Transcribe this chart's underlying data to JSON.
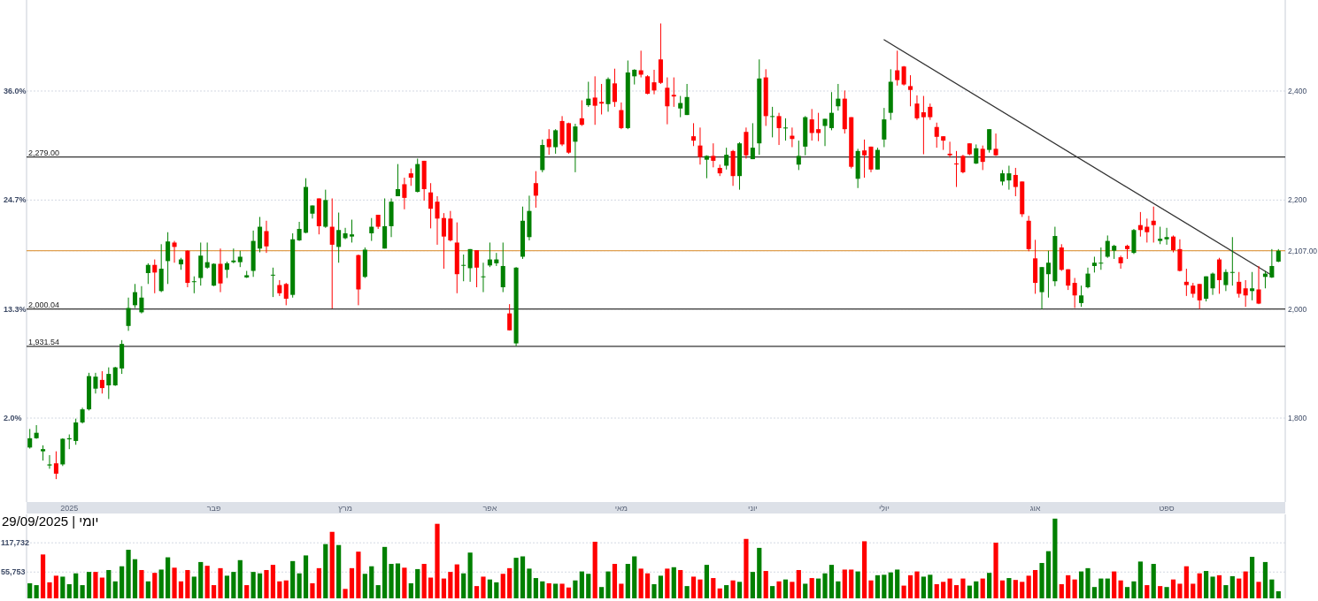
{
  "chart_data": [
    {
      "type": "candlestick",
      "categories": [
        null,
        null,
        null,
        null,
        null,
        null,
        "2025",
        null,
        null,
        null,
        null,
        null,
        null,
        null,
        null,
        null,
        null,
        null,
        null,
        null,
        null,
        null,
        null,
        null,
        null,
        null,
        null,
        null,
        "פבר",
        null,
        null,
        null,
        null,
        null,
        null,
        null,
        null,
        null,
        null,
        null,
        null,
        null,
        null,
        null,
        null,
        null,
        null,
        null,
        "מרץ",
        null,
        null,
        null,
        null,
        null,
        null,
        null,
        null,
        null,
        null,
        null,
        null,
        null,
        null,
        null,
        null,
        null,
        null,
        null,
        null,
        null,
        "אפר",
        null,
        null,
        null,
        null,
        null,
        null,
        null,
        null,
        null,
        null,
        null,
        null,
        null,
        null,
        null,
        null,
        null,
        null,
        null,
        "מאי",
        null,
        null,
        null,
        null,
        null,
        null,
        null,
        null,
        null,
        null,
        null,
        null,
        null,
        null,
        null,
        null,
        null,
        null,
        null,
        "יוני",
        null,
        null,
        null,
        null,
        null,
        null,
        null,
        null,
        null,
        null,
        null,
        null,
        null,
        null,
        null,
        null,
        null,
        null,
        null,
        "יולי",
        null,
        null,
        null,
        null,
        null,
        null,
        null,
        null,
        null,
        null,
        null,
        null,
        null,
        null,
        null,
        null,
        null,
        null,
        null,
        null,
        null,
        null,
        "אוג",
        null,
        null,
        null,
        null,
        null,
        null,
        null,
        null,
        null,
        null,
        null,
        null,
        null,
        null,
        null,
        null,
        null,
        null,
        null,
        "ספט",
        null,
        null,
        null,
        null,
        null,
        null,
        null,
        null,
        null,
        null,
        null,
        null,
        null,
        null,
        null,
        null,
        null
      ],
      "ohlc": [
        [
          1746,
          1780,
          1744,
          1763
        ],
        [
          1763,
          1787,
          1762,
          1773
        ],
        [
          1739,
          1750,
          1722,
          1743
        ],
        [
          1713,
          1732,
          1707,
          1715
        ],
        [
          1717,
          1739,
          1688,
          1698
        ],
        [
          1715,
          1763,
          1712,
          1762
        ],
        [
          1761,
          1770,
          1743,
          1763
        ],
        [
          1758,
          1799,
          1751,
          1792
        ],
        [
          1792,
          1819,
          1790,
          1816
        ],
        [
          1816,
          1883,
          1814,
          1877
        ],
        [
          1854,
          1883,
          1845,
          1876
        ],
        [
          1870,
          1886,
          1845,
          1855
        ],
        [
          1860,
          1893,
          1835,
          1881
        ],
        [
          1860,
          1894,
          1859,
          1893
        ],
        [
          1891,
          1943,
          1881,
          1936
        ],
        [
          1969,
          2021,
          1960,
          2002
        ],
        [
          2007,
          2046,
          2002,
          2031
        ],
        [
          1994,
          2042,
          1992,
          2021
        ],
        [
          2066,
          2084,
          2046,
          2081
        ],
        [
          2081,
          2091,
          2029,
          2067
        ],
        [
          2033,
          2119,
          2031,
          2074
        ],
        [
          2088,
          2141,
          2046,
          2124
        ],
        [
          2122,
          2125,
          2085,
          2114
        ],
        [
          2082,
          2094,
          2072,
          2091
        ],
        [
          2107,
          2108,
          2040,
          2048
        ],
        [
          2050,
          2060,
          2029,
          2051
        ],
        [
          2057,
          2122,
          2043,
          2098
        ],
        [
          2076,
          2122,
          2074,
          2086
        ],
        [
          2043,
          2084,
          2042,
          2083
        ],
        [
          2083,
          2111,
          2031,
          2047
        ],
        [
          2072,
          2087,
          2057,
          2084
        ],
        [
          2086,
          2111,
          2084,
          2089
        ],
        [
          2086,
          2107,
          2077,
          2096
        ],
        [
          2058,
          2070,
          2057,
          2062
        ],
        [
          2070,
          2144,
          2059,
          2125
        ],
        [
          2111,
          2169,
          2104,
          2151
        ],
        [
          2143,
          2162,
          2103,
          2115
        ],
        [
          2062,
          2076,
          2022,
          2063
        ],
        [
          2044,
          2053,
          2024,
          2029
        ],
        [
          2046,
          2048,
          2007,
          2019
        ],
        [
          2026,
          2139,
          2021,
          2128
        ],
        [
          2126,
          2160,
          2125,
          2147
        ],
        [
          2140,
          2240,
          2139,
          2224
        ],
        [
          2175,
          2190,
          2166,
          2190
        ],
        [
          2203,
          2203,
          2137,
          2152
        ],
        [
          2151,
          2219,
          2149,
          2200
        ],
        [
          2151,
          2203,
          2001,
          2118
        ],
        [
          2114,
          2177,
          2085,
          2145
        ],
        [
          2130,
          2149,
          2128,
          2139
        ],
        [
          2133,
          2164,
          2122,
          2137
        ],
        [
          2099,
          2100,
          2007,
          2036
        ],
        [
          2059,
          2113,
          2057,
          2109
        ],
        [
          2139,
          2167,
          2125,
          2151
        ],
        [
          2173,
          2173,
          2147,
          2151
        ],
        [
          2111,
          2203,
          2111,
          2152
        ],
        [
          2152,
          2203,
          2132,
          2197
        ],
        [
          2207,
          2266,
          2207,
          2220
        ],
        [
          2229,
          2241,
          2183,
          2204
        ],
        [
          2249,
          2258,
          2226,
          2241
        ],
        [
          2215,
          2276,
          2214,
          2266
        ],
        [
          2272,
          2272,
          2199,
          2220
        ],
        [
          2214,
          2231,
          2148,
          2184
        ],
        [
          2197,
          2207,
          2118,
          2166
        ],
        [
          2167,
          2176,
          2074,
          2133
        ],
        [
          2166,
          2180,
          2124,
          2126
        ],
        [
          2122,
          2159,
          2029,
          2064
        ],
        [
          2080,
          2100,
          2051,
          2081
        ],
        [
          2075,
          2110,
          2050,
          2110
        ],
        [
          2108,
          2108,
          2040,
          2076
        ],
        [
          2060,
          2085,
          2031,
          2060
        ],
        [
          2080,
          2122,
          2077,
          2091
        ],
        [
          2084,
          2103,
          2079,
          2091
        ],
        [
          2040,
          2122,
          2031,
          2079
        ],
        [
          1992,
          2009,
          1961,
          1961
        ],
        [
          1937,
          2077,
          1932,
          2076
        ],
        [
          2096,
          2188,
          2092,
          2162
        ],
        [
          2132,
          2208,
          2126,
          2180
        ],
        [
          2231,
          2253,
          2186,
          2208
        ],
        [
          2255,
          2311,
          2251,
          2301
        ],
        [
          2312,
          2330,
          2283,
          2297
        ],
        [
          2297,
          2330,
          2285,
          2328
        ],
        [
          2345,
          2354,
          2299,
          2302
        ],
        [
          2341,
          2342,
          2285,
          2287
        ],
        [
          2307,
          2340,
          2251,
          2335
        ],
        [
          2350,
          2383,
          2336,
          2338
        ],
        [
          2374,
          2417,
          2371,
          2386
        ],
        [
          2388,
          2427,
          2338,
          2373
        ],
        [
          2380,
          2413,
          2357,
          2377
        ],
        [
          2376,
          2425,
          2362,
          2422
        ],
        [
          2414,
          2441,
          2371,
          2380
        ],
        [
          2365,
          2379,
          2330,
          2332
        ],
        [
          2332,
          2456,
          2330,
          2434
        ],
        [
          2427,
          2440,
          2412,
          2439
        ],
        [
          2438,
          2474,
          2425,
          2430
        ],
        [
          2427,
          2429,
          2394,
          2395
        ],
        [
          2416,
          2439,
          2394,
          2401
        ],
        [
          2458,
          2524,
          2413,
          2415
        ],
        [
          2406,
          2425,
          2339,
          2372
        ],
        [
          2393,
          2425,
          2371,
          2390
        ],
        [
          2368,
          2391,
          2352,
          2378
        ],
        [
          2356,
          2413,
          2356,
          2389
        ],
        [
          2317,
          2341,
          2299,
          2309
        ],
        [
          2300,
          2333,
          2265,
          2279
        ],
        [
          2274,
          2282,
          2240,
          2281
        ],
        [
          2281,
          2304,
          2260,
          2272
        ],
        [
          2259,
          2265,
          2244,
          2249
        ],
        [
          2263,
          2296,
          2256,
          2283
        ],
        [
          2290,
          2292,
          2226,
          2244
        ],
        [
          2244,
          2306,
          2219,
          2304
        ],
        [
          2325,
          2333,
          2276,
          2282
        ],
        [
          2275,
          2341,
          2275,
          2296
        ],
        [
          2304,
          2458,
          2283,
          2423
        ],
        [
          2425,
          2440,
          2336,
          2354
        ],
        [
          2354,
          2371,
          2315,
          2354
        ],
        [
          2354,
          2360,
          2301,
          2332
        ],
        [
          2333,
          2350,
          2309,
          2333
        ],
        [
          2318,
          2333,
          2297,
          2312
        ],
        [
          2265,
          2309,
          2255,
          2281
        ],
        [
          2298,
          2354,
          2282,
          2352
        ],
        [
          2348,
          2367,
          2309,
          2323
        ],
        [
          2330,
          2360,
          2308,
          2323
        ],
        [
          2336,
          2349,
          2299,
          2349
        ],
        [
          2332,
          2398,
          2328,
          2360
        ],
        [
          2372,
          2413,
          2364,
          2386
        ],
        [
          2386,
          2401,
          2322,
          2330
        ],
        [
          2352,
          2352,
          2258,
          2261
        ],
        [
          2239,
          2294,
          2222,
          2290
        ],
        [
          2291,
          2311,
          2241,
          2282
        ],
        [
          2298,
          2298,
          2251,
          2256
        ],
        [
          2256,
          2296,
          2256,
          2292
        ],
        [
          2311,
          2369,
          2297,
          2348
        ],
        [
          2360,
          2440,
          2347,
          2417
        ],
        [
          2438,
          2474,
          2410,
          2420
        ],
        [
          2445,
          2446,
          2410,
          2412
        ],
        [
          2409,
          2429,
          2372,
          2402
        ],
        [
          2377,
          2392,
          2347,
          2350
        ],
        [
          2361,
          2391,
          2284,
          2352
        ],
        [
          2371,
          2377,
          2347,
          2352
        ],
        [
          2334,
          2342,
          2296,
          2316
        ],
        [
          2317,
          2317,
          2292,
          2309
        ],
        [
          2285,
          2307,
          2278,
          2282
        ],
        [
          2267,
          2290,
          2224,
          2266
        ],
        [
          2281,
          2283,
          2249,
          2251
        ],
        [
          2304,
          2304,
          2282,
          2284
        ],
        [
          2267,
          2302,
          2266,
          2295
        ],
        [
          2294,
          2300,
          2255,
          2270
        ],
        [
          2292,
          2330,
          2287,
          2330
        ],
        [
          2294,
          2322,
          2281,
          2282
        ],
        [
          2234,
          2255,
          2227,
          2249
        ],
        [
          2236,
          2263,
          2219,
          2249
        ],
        [
          2246,
          2259,
          2207,
          2224
        ],
        [
          2234,
          2234,
          2169,
          2174
        ],
        [
          2162,
          2171,
          2106,
          2110
        ],
        [
          2093,
          2127,
          2028,
          2048
        ],
        [
          2031,
          2077,
          2000,
          2077
        ],
        [
          2064,
          2107,
          2021,
          2085
        ],
        [
          2051,
          2151,
          2042,
          2134
        ],
        [
          2113,
          2119,
          2070,
          2072
        ],
        [
          2073,
          2073,
          2035,
          2043
        ],
        [
          2048,
          2057,
          2002,
          2025
        ],
        [
          2011,
          2043,
          2004,
          2025
        ],
        [
          2040,
          2076,
          2038,
          2065
        ],
        [
          2079,
          2096,
          2067,
          2085
        ],
        [
          2085,
          2113,
          2072,
          2085
        ],
        [
          2096,
          2135,
          2094,
          2125
        ],
        [
          2107,
          2118,
          2092,
          2116
        ],
        [
          2095,
          2098,
          2074,
          2084
        ],
        [
          2116,
          2118,
          2092,
          2110
        ],
        [
          2103,
          2147,
          2101,
          2145
        ],
        [
          2154,
          2178,
          2133,
          2145
        ],
        [
          2151,
          2166,
          2122,
          2141
        ],
        [
          2162,
          2188,
          2122,
          2154
        ],
        [
          2125,
          2151,
          2119,
          2129
        ],
        [
          2128,
          2149,
          2118,
          2132
        ],
        [
          2133,
          2135,
          2104,
          2108
        ],
        [
          2110,
          2128,
          2069,
          2070
        ],
        [
          2050,
          2074,
          2024,
          2044
        ],
        [
          2043,
          2048,
          2021,
          2028
        ],
        [
          2046,
          2046,
          2000,
          2016
        ],
        [
          2019,
          2060,
          2014,
          2060
        ],
        [
          2038,
          2067,
          2026,
          2065
        ],
        [
          2091,
          2094,
          2028,
          2053
        ],
        [
          2044,
          2073,
          2033,
          2068
        ],
        [
          2068,
          2132,
          2043,
          2068
        ],
        [
          2050,
          2068,
          2021,
          2028
        ],
        [
          2038,
          2053,
          2004,
          2025
        ],
        [
          2033,
          2068,
          2016,
          2038
        ],
        [
          2036,
          2079,
          2009,
          2010
        ],
        [
          2059,
          2070,
          2038,
          2065
        ],
        [
          2058,
          2110,
          2057,
          2079
        ],
        [
          2087,
          2110,
          2086,
          2107
        ]
      ],
      "colors": [
        "#008000",
        "#008000",
        "#008000",
        "#008000",
        "#ff0000",
        "#008000",
        "#008000",
        "#008000",
        "#008000",
        "#008000",
        "#008000",
        "#ff0000",
        "#008000",
        "#008000",
        "#008000",
        "#008000",
        "#008000",
        "#008000",
        "#008000",
        "#ff0000",
        "#008000",
        "#008000",
        "#ff0000",
        "#008000",
        "#ff0000",
        "#008000",
        "#008000",
        "#008000",
        "#008000",
        "#ff0000",
        "#008000",
        "#008000",
        "#008000",
        "#008000",
        "#008000",
        "#008000",
        "#ff0000",
        "#008000",
        "#ff0000",
        "#ff0000",
        "#008000",
        "#008000",
        "#008000",
        "#008000",
        "#ff0000",
        "#008000",
        "#ff0000",
        "#008000",
        "#008000",
        "#008000",
        "#ff0000",
        "#008000",
        "#008000",
        "#ff0000",
        "#008000",
        "#008000",
        "#008000",
        "#ff0000",
        "#ff0000",
        "#008000",
        "#ff0000",
        "#ff0000",
        "#ff0000",
        "#ff0000",
        "#ff0000",
        "#ff0000",
        "#008000",
        "#008000",
        "#ff0000",
        "#008000",
        "#008000",
        "#008000",
        "#008000",
        "#ff0000",
        "#008000",
        "#008000",
        "#008000",
        "#ff0000",
        "#008000",
        "#ff0000",
        "#008000",
        "#ff0000",
        "#ff0000",
        "#008000",
        "#ff0000",
        "#008000",
        "#ff0000",
        "#ff0000",
        "#008000",
        "#ff0000",
        "#ff0000",
        "#008000",
        "#008000",
        "#ff0000",
        "#ff0000",
        "#ff0000",
        "#ff0000",
        "#ff0000",
        "#ff0000",
        "#008000",
        "#008000",
        "#ff0000",
        "#ff0000",
        "#008000",
        "#ff0000",
        "#ff0000",
        "#008000",
        "#ff0000",
        "#008000",
        "#ff0000",
        "#008000",
        "#008000",
        "#ff0000",
        "#008000",
        "#ff0000",
        "#008000",
        "#ff0000",
        "#008000",
        "#008000",
        "#ff0000",
        "#ff0000",
        "#008000",
        "#008000",
        "#008000",
        "#ff0000",
        "#ff0000",
        "#008000",
        "#ff0000",
        "#ff0000",
        "#008000",
        "#008000",
        "#008000",
        "#ff0000",
        "#ff0000",
        "#ff0000",
        "#ff0000",
        "#ff0000",
        "#ff0000",
        "#ff0000",
        "#ff0000",
        "#ff0000",
        "#ff0000",
        "#ff0000",
        "#ff0000",
        "#008000",
        "#ff0000",
        "#008000",
        "#ff0000",
        "#008000",
        "#008000",
        "#ff0000",
        "#ff0000",
        "#ff0000",
        "#ff0000",
        "#008000",
        "#008000",
        "#008000",
        "#ff0000",
        "#ff0000",
        "#ff0000",
        "#008000",
        "#008000",
        "#008000",
        "#008000",
        "#008000",
        "#008000",
        "#ff0000",
        "#ff0000",
        "#008000",
        "#ff0000",
        "#ff0000",
        "#ff0000",
        "#008000",
        "#008000",
        "#ff0000",
        "#ff0000",
        "#ff0000",
        "#ff0000",
        "#ff0000",
        "#008000",
        "#008000",
        "#ff0000",
        "#008000",
        "#008000",
        "#ff0000",
        "#ff0000",
        "#008000",
        "#ff0000",
        "#008000",
        "#008000",
        "#008000"
      ],
      "series": [
        {
          "type": "line",
          "color": "#333333",
          "values": [
            null,
            null,
            null,
            null,
            null,
            null,
            null,
            null,
            null,
            null,
            null,
            null,
            null,
            null,
            null,
            null,
            null,
            null,
            null,
            null,
            null,
            null,
            null,
            null,
            null,
            null,
            null,
            null,
            null,
            null,
            null,
            null,
            null,
            null,
            null,
            null,
            null,
            null,
            null,
            null,
            null,
            null,
            null,
            null,
            null,
            null,
            null,
            null,
            null,
            null,
            null,
            null,
            null,
            null,
            null,
            null,
            null,
            null,
            null,
            null,
            null,
            null,
            null,
            null,
            null,
            null,
            null,
            null,
            null,
            null,
            null,
            null,
            null,
            null,
            null,
            null,
            null,
            null,
            null,
            null,
            null,
            null,
            null,
            null,
            null,
            null,
            null,
            null,
            null,
            null,
            null,
            null,
            null,
            null,
            null,
            null,
            null,
            null,
            null,
            null,
            null,
            null,
            null,
            null,
            null,
            null,
            null,
            null,
            null,
            null,
            null,
            null,
            null,
            null,
            null,
            null,
            null,
            null,
            null,
            null,
            null,
            null,
            null,
            null,
            null,
            null,
            null,
            null,
            null,
            null,
            2494,
            null,
            null,
            null,
            null,
            null,
            null,
            null,
            null,
            null,
            null,
            null,
            null,
            null,
            null,
            null,
            null,
            null,
            null,
            null,
            null,
            null,
            null,
            null,
            null,
            null,
            null,
            null,
            null,
            null,
            null,
            null,
            null,
            null,
            null,
            null,
            null,
            null,
            null,
            null,
            null,
            null,
            null,
            null,
            null,
            null,
            null,
            null,
            null,
            null,
            null,
            null,
            null,
            null,
            null,
            null,
            null,
            null,
            null,
            2062,
            null
          ]
        }
      ],
      "ylim": [
        1646,
        2567
      ],
      "yticks": [
        {
          "value": 1800,
          "label": "1,800"
        },
        {
          "value": 2000,
          "label": "2,000"
        },
        {
          "value": 2107,
          "label": "2,107.00"
        },
        {
          "value": 2200,
          "label": "2,200"
        },
        {
          "value": 2400,
          "label": "2,400"
        }
      ],
      "y2lim": [
        -6.7,
        45.5
      ],
      "y2ticks": [
        {
          "value": 2.0,
          "label": "2.0%"
        },
        {
          "value": 13.3,
          "label": "13.3%"
        },
        {
          "value": 24.7,
          "label": "24.7%"
        },
        {
          "value": 36.0,
          "label": "36.0%"
        }
      ],
      "ref_lines": [
        {
          "axis": "y",
          "value": 2279,
          "label": "2,279.00",
          "color": "#333333"
        },
        {
          "axis": "y",
          "value": 2000.04,
          "label": "2,000.04",
          "color": "#333333"
        },
        {
          "axis": "y",
          "value": 1931.54,
          "label": "1,931.54",
          "color": "#333333"
        },
        {
          "axis": "y",
          "value": 2107,
          "color": "#e0a050"
        }
      ],
      "grid": "y"
    },
    {
      "type": "bar",
      "categories": [
        null,
        null,
        null,
        null,
        null,
        null,
        null,
        null,
        null,
        null,
        null,
        null,
        null,
        null,
        null,
        null,
        null,
        null,
        null,
        null,
        null,
        null,
        null,
        null,
        null,
        null,
        null,
        null,
        null,
        null,
        null,
        null,
        null,
        null,
        null,
        null,
        null,
        null,
        null,
        null,
        null,
        null,
        null,
        null,
        null,
        null,
        null,
        null,
        null,
        null,
        null,
        null,
        null,
        null,
        null,
        null,
        null,
        null,
        null,
        null,
        null,
        null,
        null,
        null,
        null,
        null,
        null,
        null,
        null,
        null,
        null,
        null,
        null,
        null,
        null,
        null,
        null,
        null,
        null,
        null,
        null,
        null,
        null,
        null,
        null,
        null,
        null,
        null,
        null,
        null,
        null,
        null,
        null,
        null,
        null,
        null,
        null,
        null,
        null,
        null,
        null,
        null,
        null,
        null,
        null,
        null,
        null,
        null,
        null,
        null,
        null,
        null,
        null,
        null,
        null,
        null,
        null,
        null,
        null,
        null,
        null,
        null,
        null,
        null,
        null,
        null,
        null,
        null,
        null,
        null,
        null,
        null,
        null,
        null,
        null,
        null,
        null,
        null,
        null,
        null,
        null,
        null,
        null,
        null,
        null,
        null,
        null,
        null,
        null,
        null,
        null,
        null,
        null,
        null,
        null,
        null,
        null,
        null,
        null,
        null,
        null,
        null,
        null,
        null,
        null,
        null,
        null,
        null,
        null,
        null,
        null,
        null,
        null,
        null,
        null,
        null,
        null,
        null,
        null,
        null,
        null,
        null,
        null,
        null,
        null,
        null,
        null,
        null,
        null,
        null,
        null
      ],
      "values": [
        32000,
        28000,
        93000,
        34000,
        48000,
        46000,
        30000,
        53000,
        28000,
        56000,
        56000,
        44000,
        60000,
        36000,
        68000,
        103000,
        83000,
        60000,
        36000,
        54000,
        61000,
        87000,
        65000,
        36000,
        60000,
        46000,
        77000,
        69000,
        28000,
        64000,
        48000,
        56000,
        81000,
        28000,
        56000,
        53000,
        60000,
        71000,
        36000,
        38000,
        79000,
        53000,
        91000,
        32000,
        64000,
        115000,
        141000,
        113000,
        20000,
        64000,
        99000,
        52000,
        68000,
        28000,
        109000,
        73000,
        74000,
        65000,
        32000,
        62000,
        73000,
        44000,
        158000,
        42000,
        56000,
        72000,
        53000,
        97000,
        26000,
        46000,
        40000,
        34000,
        52000,
        64000,
        86000,
        89000,
        63000,
        43000,
        36000,
        32000,
        31000,
        31000,
        23000,
        38000,
        57000,
        52000,
        120000,
        24000,
        57000,
        73000,
        31000,
        73000,
        89000,
        63000,
        53000,
        30000,
        48000,
        63000,
        66000,
        60000,
        26000,
        46000,
        40000,
        71000,
        43000,
        21000,
        28000,
        38000,
        35000,
        126000,
        56000,
        107000,
        58000,
        26000,
        36000,
        40000,
        35000,
        60000,
        31000,
        43000,
        42000,
        53000,
        71000,
        36000,
        61000,
        61000,
        57000,
        121000,
        38000,
        49000,
        50000,
        55000,
        61000,
        27000,
        49000,
        57000,
        46000,
        50000,
        30000,
        35000,
        42000,
        28000,
        42000,
        27000,
        36000,
        42000,
        54000,
        118000,
        38000,
        43000,
        39000,
        35000,
        48000,
        60000,
        75000,
        100000,
        169000,
        30000,
        49000,
        40000,
        57000,
        64000,
        24000,
        42000,
        42000,
        57000,
        38000,
        24000,
        36000,
        78000,
        28000,
        73000,
        26000,
        24000,
        40000,
        31000,
        68000,
        31000,
        53000,
        58000,
        46000,
        49000,
        28000,
        47000,
        42000,
        57000,
        88000,
        35000,
        77000,
        40000,
        15000
      ],
      "colors": [
        "#008000",
        "#008000",
        "#ff0000",
        "#ff0000",
        "#ff0000",
        "#008000",
        "#008000",
        "#008000",
        "#008000",
        "#008000",
        "#ff0000",
        "#ff0000",
        "#008000",
        "#008000",
        "#008000",
        "#008000",
        "#008000",
        "#ff0000",
        "#008000",
        "#ff0000",
        "#008000",
        "#008000",
        "#ff0000",
        "#ff0000",
        "#ff0000",
        "#008000",
        "#008000",
        "#ff0000",
        "#ff0000",
        "#ff0000",
        "#008000",
        "#008000",
        "#008000",
        "#ff0000",
        "#008000",
        "#008000",
        "#ff0000",
        "#ff0000",
        "#ff0000",
        "#ff0000",
        "#008000",
        "#008000",
        "#008000",
        "#ff0000",
        "#ff0000",
        "#008000",
        "#ff0000",
        "#008000",
        "#ff0000",
        "#ff0000",
        "#ff0000",
        "#008000",
        "#008000",
        "#008000",
        "#008000",
        "#008000",
        "#008000",
        "#ff0000",
        "#008000",
        "#008000",
        "#ff0000",
        "#ff0000",
        "#ff0000",
        "#ff0000",
        "#ff0000",
        "#ff0000",
        "#008000",
        "#008000",
        "#ff0000",
        "#ff0000",
        "#008000",
        "#008000",
        "#ff0000",
        "#ff0000",
        "#008000",
        "#008000",
        "#008000",
        "#008000",
        "#008000",
        "#ff0000",
        "#008000",
        "#ff0000",
        "#ff0000",
        "#008000",
        "#008000",
        "#008000",
        "#ff0000",
        "#008000",
        "#008000",
        "#ff0000",
        "#ff0000",
        "#008000",
        "#008000",
        "#ff0000",
        "#ff0000",
        "#008000",
        "#008000",
        "#ff0000",
        "#008000",
        "#ff0000",
        "#008000",
        "#ff0000",
        "#ff0000",
        "#008000",
        "#ff0000",
        "#ff0000",
        "#008000",
        "#ff0000",
        "#008000",
        "#ff0000",
        "#008000",
        "#008000",
        "#ff0000",
        "#008000",
        "#ff0000",
        "#008000",
        "#ff0000",
        "#ff0000",
        "#008000",
        "#ff0000",
        "#008000",
        "#008000",
        "#008000",
        "#008000",
        "#ff0000",
        "#ff0000",
        "#008000",
        "#ff0000",
        "#ff0000",
        "#008000",
        "#008000",
        "#008000",
        "#008000",
        "#ff0000",
        "#ff0000",
        "#ff0000",
        "#008000",
        "#008000",
        "#ff0000",
        "#ff0000",
        "#ff0000",
        "#ff0000",
        "#ff0000",
        "#008000",
        "#008000",
        "#ff0000",
        "#008000",
        "#ff0000",
        "#ff0000",
        "#008000",
        "#ff0000",
        "#ff0000",
        "#ff0000",
        "#ff0000",
        "#008000",
        "#008000",
        "#008000",
        "#ff0000",
        "#ff0000",
        "#ff0000",
        "#008000",
        "#008000",
        "#008000",
        "#008000",
        "#008000",
        "#ff0000",
        "#ff0000",
        "#008000",
        "#008000",
        "#008000",
        "#ff0000",
        "#008000",
        "#ff0000",
        "#008000",
        "#ff0000",
        "#ff0000",
        "#ff0000",
        "#ff0000",
        "#ff0000",
        "#008000",
        "#008000",
        "#ff0000",
        "#008000",
        "#008000",
        "#ff0000",
        "#ff0000",
        "#008000",
        "#ff0000",
        "#008000",
        "#008000",
        "#008000"
      ],
      "ylim": [
        0,
        178000
      ],
      "yticks": [
        {
          "value": 55753,
          "label": "55,753"
        },
        {
          "value": 117732,
          "label": "117,732"
        }
      ],
      "tick_labels": "y",
      "grid": "y",
      "annotations": [
        "יומי | 29/09/2025"
      ]
    }
  ]
}
